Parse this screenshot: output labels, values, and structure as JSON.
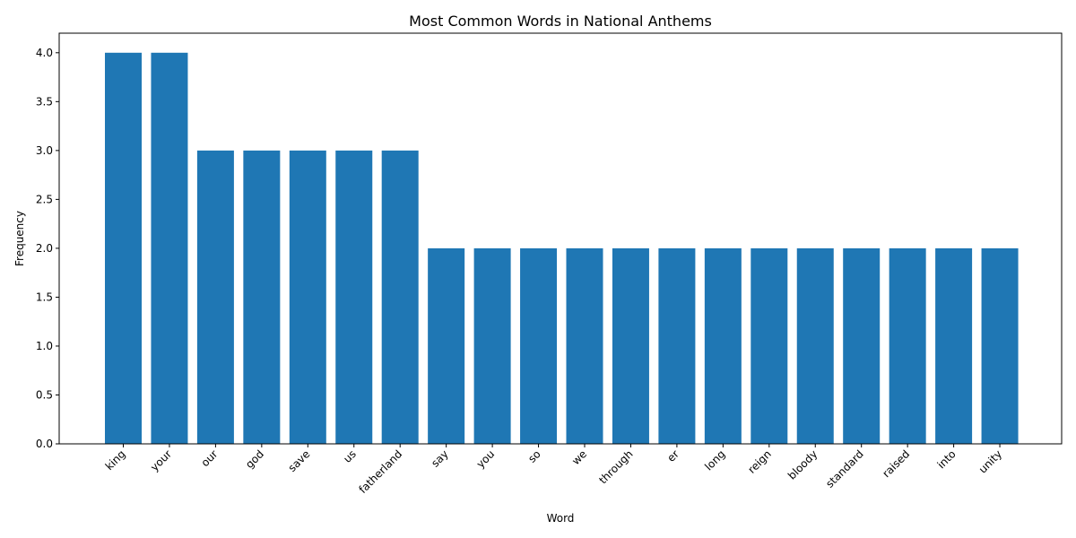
{
  "chart_data": {
    "type": "bar",
    "title": "Most Common Words in National Anthems",
    "xlabel": "Word",
    "ylabel": "Frequency",
    "categories": [
      "king",
      "your",
      "our",
      "god",
      "save",
      "us",
      "fatherland",
      "say",
      "you",
      "so",
      "we",
      "through",
      "er",
      "long",
      "reign",
      "bloody",
      "standard",
      "raised",
      "into",
      "unity"
    ],
    "values": [
      4,
      4,
      3,
      3,
      3,
      3,
      3,
      2,
      2,
      2,
      2,
      2,
      2,
      2,
      2,
      2,
      2,
      2,
      2,
      2
    ],
    "ylim": [
      0,
      4.2
    ],
    "yticks": [
      "0.0",
      "0.5",
      "1.0",
      "1.5",
      "2.0",
      "2.5",
      "3.0",
      "3.5",
      "4.0"
    ],
    "bar_color": "#1f77b4",
    "grid": false,
    "legend": "none"
  }
}
